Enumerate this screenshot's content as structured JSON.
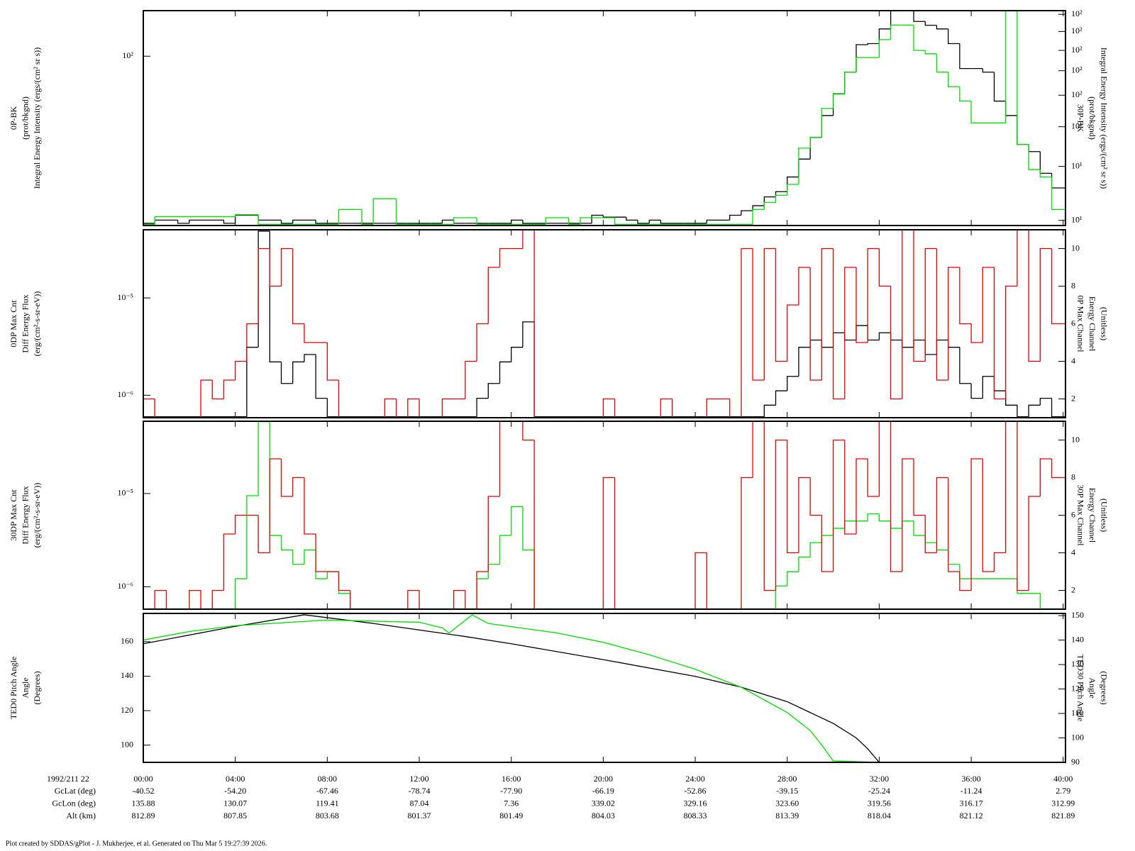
{
  "chart_data": [
    {
      "type": "step",
      "yscale": "log",
      "y2scale": "log",
      "ylabel": [
        "0P-BK",
        "(prot/bkgnd)",
        "Integral Energy Intensity (ergs/(cm² sr s))"
      ],
      "y2label": [
        "30P-BK",
        "(prot/bkgnd)",
        "Integral Energy Intensity (ergs/(cm² sr s))"
      ],
      "xlim": [
        0,
        40.1
      ],
      "xticks": [
        0,
        4,
        8,
        12,
        16,
        20,
        24,
        28,
        32,
        36,
        40
      ],
      "ylim": [
        5,
        224
      ],
      "yticks": [
        {
          "value": 100,
          "label": "10²"
        }
      ],
      "y2lim": [
        9.1,
        474
      ],
      "y2ticks": [
        {
          "value": 10,
          "label": "10¹"
        },
        {
          "value": 27,
          "label": "10¹"
        },
        {
          "value": 56,
          "label": "10¹"
        },
        {
          "value": 100,
          "label": "10²"
        },
        {
          "value": 157,
          "label": "10²"
        },
        {
          "value": 228,
          "label": "10²"
        },
        {
          "value": 323,
          "label": "10²"
        },
        {
          "value": 443,
          "label": "10²"
        }
      ],
      "x": [
        0,
        0.5,
        1,
        1.5,
        2,
        2.5,
        3,
        3.5,
        4,
        4.5,
        5,
        5.5,
        6,
        6.5,
        7,
        7.5,
        8,
        8.5,
        9,
        9.5,
        10,
        10.5,
        11,
        11.5,
        12,
        12.5,
        13,
        13.5,
        14,
        14.5,
        15,
        15.5,
        16,
        16.5,
        17,
        17.5,
        18,
        18.5,
        19,
        19.5,
        20,
        20.5,
        21,
        21.5,
        22,
        22.5,
        23,
        23.5,
        24,
        24.5,
        25,
        25.5,
        26,
        26.5,
        27,
        27.5,
        28,
        28.5,
        29,
        29.5,
        30,
        30.5,
        31,
        31.5,
        32,
        32.5,
        33,
        33.5,
        34,
        34.5,
        35,
        35.5,
        36,
        36.5,
        37,
        37.5,
        38,
        38.5,
        39,
        39.5
      ],
      "series": [
        {
          "color": "#000000",
          "values": [
            5.2,
            5.5,
            5.5,
            5.2,
            5.5,
            5.5,
            5.5,
            5.2,
            6.0,
            6.0,
            5.5,
            5.5,
            5.2,
            5.5,
            5.5,
            5.2,
            5.2,
            5.2,
            5.2,
            5.2,
            5.2,
            5.2,
            5.2,
            5.2,
            5.2,
            5.2,
            5.5,
            5.2,
            5.2,
            5.2,
            5.2,
            5.2,
            5.5,
            5.2,
            5.2,
            5.2,
            5.2,
            5.2,
            5.2,
            6.0,
            5.8,
            5.8,
            5.5,
            5.2,
            5.5,
            5.2,
            5.2,
            5.2,
            5.2,
            5.5,
            5.5,
            6.0,
            6.5,
            7.1,
            8.3,
            9.1,
            11.8,
            16.2,
            23.8,
            35,
            51.4,
            75.4,
            122.7,
            125,
            162,
            224,
            224,
            185,
            173,
            162,
            125,
            80.4,
            80.4,
            75.4,
            45.2,
            35,
            21,
            18.5,
            12.6,
            9.72
          ]
        },
        {
          "color": "#00dd00",
          "axis": "y2",
          "values": [
            9.3,
            10.7,
            10.7,
            10.7,
            10.7,
            10.7,
            10.7,
            10.7,
            11.1,
            11.1,
            9.3,
            9.3,
            9.3,
            9.3,
            9.3,
            9.3,
            9.3,
            12.2,
            12.2,
            9.3,
            14.9,
            14.9,
            9.3,
            9.3,
            9.3,
            9.3,
            9.3,
            10.5,
            10.5,
            9.3,
            9.3,
            9.3,
            9.3,
            9.3,
            9.3,
            10.5,
            10.5,
            9.3,
            10.5,
            10.5,
            10.5,
            9.3,
            9.3,
            9.3,
            9.3,
            9.3,
            9.3,
            9.3,
            9.3,
            9.3,
            9.3,
            9.3,
            9.3,
            12.2,
            13.9,
            15.9,
            19.4,
            37.8,
            46.2,
            78.6,
            102,
            153,
            200,
            200,
            278,
            363,
            363,
            228,
            214,
            153,
            117,
            90,
            60,
            60,
            60,
            474,
            40.5,
            25.4,
            22.2,
            12.2
          ]
        }
      ]
    },
    {
      "type": "step",
      "yscale": "log",
      "ylabel": [
        "0DP Max Cnt",
        "Diff Energy Flux",
        "(erg/(cm²-s-sr-eV))"
      ],
      "y2label": [
        "0P Max Channel",
        "Energy Channel",
        "(Unitless)"
      ],
      "xlim": [
        0,
        40.1
      ],
      "xticks": [
        0,
        4,
        8,
        12,
        16,
        20,
        24,
        28,
        32,
        36,
        40
      ],
      "ylim": [
        5.87e-07,
        5.02e-05
      ],
      "yticks": [
        {
          "value": 1e-06,
          "label": "10⁻⁶"
        },
        {
          "value": 1e-05,
          "label": "10⁻⁵"
        }
      ],
      "y2lim": [
        1,
        11
      ],
      "y2ticks": [
        2,
        4,
        6,
        8,
        10
      ],
      "x": [
        0,
        0.5,
        1,
        1.5,
        2,
        2.5,
        3,
        3.5,
        4,
        4.5,
        5,
        5.5,
        6,
        6.5,
        7,
        7.5,
        8,
        8.5,
        9,
        9.5,
        10,
        10.5,
        11,
        11.5,
        12,
        12.5,
        13,
        13.5,
        14,
        14.5,
        15,
        15.5,
        16,
        16.5,
        17,
        17.5,
        18,
        18.5,
        19,
        19.5,
        20,
        20.5,
        21,
        21.5,
        22,
        22.5,
        23,
        23.5,
        24,
        24.5,
        25,
        25.5,
        26,
        26.5,
        27,
        27.5,
        28,
        28.5,
        29,
        29.5,
        30,
        30.5,
        31,
        31.5,
        32,
        32.5,
        33,
        33.5,
        34,
        34.5,
        35,
        35.5,
        36,
        36.5,
        37,
        37.5,
        38,
        38.5,
        39,
        39.5
      ],
      "series": [
        {
          "color": "#000000",
          "values": [
            6e-07,
            6e-07,
            6e-07,
            6e-07,
            6e-07,
            6e-07,
            6e-07,
            6e-07,
            6e-07,
            3.11e-06,
            4.86e-05,
            2.2e-06,
            1.32e-06,
            2.2e-06,
            2.62e-06,
            9.3e-07,
            6e-07,
            6e-07,
            6e-07,
            6e-07,
            6e-07,
            6e-07,
            6e-07,
            6e-07,
            6e-07,
            6e-07,
            6e-07,
            6e-07,
            6e-07,
            9.3e-07,
            1.32e-06,
            2.2e-06,
            3.11e-06,
            5.67e-06,
            6e-07,
            6e-07,
            6e-07,
            6e-07,
            6e-07,
            6e-07,
            6e-07,
            6e-07,
            6e-07,
            6e-07,
            6e-07,
            6e-07,
            6e-07,
            6e-07,
            6e-07,
            6e-07,
            6e-07,
            6e-07,
            6e-07,
            6e-07,
            7.9e-07,
            1.11e-06,
            1.56e-06,
            3.11e-06,
            3.69e-06,
            3.11e-06,
            4.38e-06,
            3.69e-06,
            5.2e-06,
            3.69e-06,
            4.38e-06,
            3.69e-06,
            3.11e-06,
            3.69e-06,
            2.62e-06,
            3.69e-06,
            3.11e-06,
            1.32e-06,
            9.3e-07,
            1.56e-06,
            1.11e-06,
            7.9e-07,
            6e-07,
            7.9e-07,
            9.3e-07,
            6e-07
          ]
        },
        {
          "color": "#e00000",
          "axis": "y2",
          "values": [
            2,
            1,
            1,
            1,
            1,
            3,
            2,
            3,
            4,
            6,
            10,
            8,
            10,
            6,
            5,
            5,
            3,
            1,
            1,
            1,
            1,
            2,
            1,
            2,
            1,
            1,
            2,
            2,
            4,
            6,
            9,
            10,
            10,
            11,
            1,
            1,
            1,
            1,
            1,
            1,
            2,
            1,
            1,
            1,
            1,
            2,
            1,
            1,
            1,
            2,
            2,
            1,
            10,
            3,
            10,
            4,
            7,
            9,
            3,
            10,
            2,
            9,
            5,
            10,
            8,
            2,
            11,
            4,
            10,
            3,
            9,
            6,
            5,
            9,
            2,
            8,
            11,
            4,
            10,
            6
          ]
        }
      ]
    },
    {
      "type": "step",
      "yscale": "log",
      "ylabel": [
        "30DP Max Cnt",
        "Diff Energy Flux",
        "(erg/(cm²-s-sr-eV))"
      ],
      "y2label": [
        "30P Max Channel",
        "Energy Channel",
        "(Unitless)"
      ],
      "xlim": [
        0,
        40.1
      ],
      "xticks": [
        0,
        4,
        8,
        12,
        16,
        20,
        24,
        28,
        32,
        36,
        40
      ],
      "ylim": [
        5.75e-07,
        5.96e-05
      ],
      "yticks": [
        {
          "value": 1e-06,
          "label": "10⁻⁶"
        },
        {
          "value": 1e-05,
          "label": "10⁻⁵"
        }
      ],
      "y2lim": [
        1,
        11
      ],
      "y2ticks": [
        2,
        4,
        6,
        8,
        10
      ],
      "x": [
        0,
        0.5,
        1,
        1.5,
        2,
        2.5,
        3,
        3.5,
        4,
        4.5,
        5,
        5.5,
        6,
        6.5,
        7,
        7.5,
        8,
        8.5,
        9,
        9.5,
        10,
        10.5,
        11,
        11.5,
        12,
        12.5,
        13,
        13.5,
        14,
        14.5,
        15,
        15.5,
        16,
        16.5,
        17,
        17.5,
        18,
        18.5,
        19,
        19.5,
        20,
        20.5,
        21,
        21.5,
        22,
        22.5,
        23,
        23.5,
        24,
        24.5,
        25,
        25.5,
        26,
        26.5,
        27,
        27.5,
        28,
        28.5,
        29,
        29.5,
        30,
        30.5,
        31,
        31.5,
        32,
        32.5,
        33,
        33.5,
        34,
        34.5,
        35,
        35.5,
        36,
        36.5,
        37,
        37.5,
        38,
        38.5,
        39,
        39.5
      ],
      "series": [
        {
          "color": "#00dd00",
          "values": [
            5.8e-07,
            5.8e-07,
            5.8e-07,
            5.8e-07,
            5.8e-07,
            5.8e-07,
            5.8e-07,
            5.8e-07,
            1.22e-06,
            9.47e-06,
            5.9e-05,
            3.55e-06,
            2.48e-06,
            1.74e-06,
            2.48e-06,
            1.22e-06,
            1.45e-06,
            8.5e-07,
            5.8e-07,
            5.8e-07,
            5.8e-07,
            5.8e-07,
            5.8e-07,
            5.8e-07,
            5.8e-07,
            5.8e-07,
            5.8e-07,
            5.8e-07,
            5.8e-07,
            1.22e-06,
            1.74e-06,
            3.55e-06,
            7.25e-06,
            2.48e-06,
            5.8e-07,
            5.8e-07,
            5.8e-07,
            5.8e-07,
            5.8e-07,
            5.8e-07,
            5.8e-07,
            5.8e-07,
            5.8e-07,
            5.8e-07,
            5.8e-07,
            5.8e-07,
            5.8e-07,
            5.8e-07,
            5.8e-07,
            5.8e-07,
            5.8e-07,
            5.8e-07,
            5.8e-07,
            5.8e-07,
            5.8e-07,
            1.02e-06,
            1.45e-06,
            2.08e-06,
            2.97e-06,
            3.55e-06,
            4.24e-06,
            5.07e-06,
            5.07e-06,
            6.06e-06,
            5.07e-06,
            4.24e-06,
            5.07e-06,
            3.55e-06,
            2.97e-06,
            2.48e-06,
            1.74e-06,
            1.22e-06,
            1.22e-06,
            1.22e-06,
            1.22e-06,
            1.22e-06,
            8.5e-07,
            8.5e-07,
            5.8e-07,
            5.8e-07
          ]
        },
        {
          "color": "#e00000",
          "axis": "y2",
          "values": [
            1,
            2,
            1,
            1,
            2,
            1,
            2,
            5,
            6,
            6,
            4,
            9,
            7,
            8,
            5,
            3,
            3,
            2,
            1,
            1,
            1,
            1,
            1,
            2,
            1,
            1,
            1,
            2,
            1,
            3,
            7,
            11,
            11,
            10,
            1,
            1,
            1,
            1,
            1,
            1,
            8,
            1,
            1,
            1,
            1,
            1,
            1,
            1,
            4,
            1,
            1,
            1,
            8,
            11,
            2,
            10,
            4,
            8,
            6,
            3,
            10,
            5,
            9,
            7,
            11,
            3,
            9,
            6,
            4,
            8,
            3,
            2,
            9,
            3,
            4,
            11,
            2,
            7,
            9,
            8
          ]
        }
      ]
    },
    {
      "type": "line",
      "ylabel": [
        "TED0 Pitch Angle",
        "Angle",
        "(Degrees)"
      ],
      "y2label": [
        "TED30 Pitch Angle",
        "Angle",
        "(Degrees)"
      ],
      "xlim": [
        0,
        40.1
      ],
      "xticks": [
        {
          "value": 0,
          "label": "00:00"
        },
        {
          "value": 4,
          "label": "04:00"
        },
        {
          "value": 8,
          "label": "08:00"
        },
        {
          "value": 12,
          "label": "12:00"
        },
        {
          "value": 16,
          "label": "16:00"
        },
        {
          "value": 20,
          "label": "20:00"
        },
        {
          "value": 24,
          "label": "24:00"
        },
        {
          "value": 28,
          "label": "28:00"
        },
        {
          "value": 32,
          "label": "32:00"
        },
        {
          "value": 36,
          "label": "36:00"
        },
        {
          "value": 40,
          "label": "40:00"
        }
      ],
      "ylim": [
        90,
        176.4
      ],
      "yticks": [
        100,
        120,
        140,
        160
      ],
      "y2lim": [
        90,
        150.9
      ],
      "y2ticks": [
        90,
        100,
        110,
        120,
        130,
        140,
        150
      ],
      "series": [
        {
          "color": "#000000",
          "x": [
            0,
            4,
            7,
            10,
            14,
            16,
            20,
            24,
            26,
            28,
            29,
            30,
            31,
            31.5,
            32,
            36,
            40
          ],
          "values": [
            158.8,
            168.9,
            175.6,
            170.6,
            163,
            158.8,
            149.6,
            139.9,
            133.6,
            125.2,
            118.9,
            112.6,
            104.2,
            97.9,
            90,
            90,
            90
          ]
        },
        {
          "color": "#00dd00",
          "axis": "y2",
          "x": [
            0,
            2,
            4,
            8,
            12,
            13,
            13.3,
            14.3,
            15,
            18,
            20,
            22,
            24,
            26,
            28,
            29,
            29.5,
            30,
            32,
            36,
            40
          ],
          "values": [
            140,
            143.5,
            145.9,
            148.2,
            147.3,
            145,
            142.9,
            150.3,
            146.8,
            142.9,
            139.1,
            134,
            128.1,
            120.7,
            110.4,
            103,
            97.1,
            90.6,
            90,
            90,
            90
          ]
        }
      ]
    }
  ],
  "ephemeris": {
    "time_label": "1992/211 22",
    "rows": [
      {
        "label": "GcLat (deg)",
        "values": [
          "-40.52",
          "-54.20",
          "-67.46",
          "-78.74",
          "-77.90",
          "-66.19",
          "-52.86",
          "-39.15",
          "-25.24",
          "-11.24",
          "2.79"
        ]
      },
      {
        "label": "GcLon (deg)",
        "values": [
          "135.88",
          "130.07",
          "119.41",
          "87.04",
          "7.36",
          "339.02",
          "329.16",
          "323.60",
          "319.56",
          "316.17",
          "312.99"
        ]
      },
      {
        "label": "Alt (km)",
        "values": [
          "812.89",
          "807.85",
          "803.68",
          "801.37",
          "801.49",
          "804.03",
          "808.33",
          "813.39",
          "818.04",
          "821.12",
          "821.89"
        ]
      }
    ]
  },
  "footer": "Plot created by SDDAS/gPlot - J. Mukherjee, et al.  Generated on Thu Mar 5 19:27:39 2026."
}
